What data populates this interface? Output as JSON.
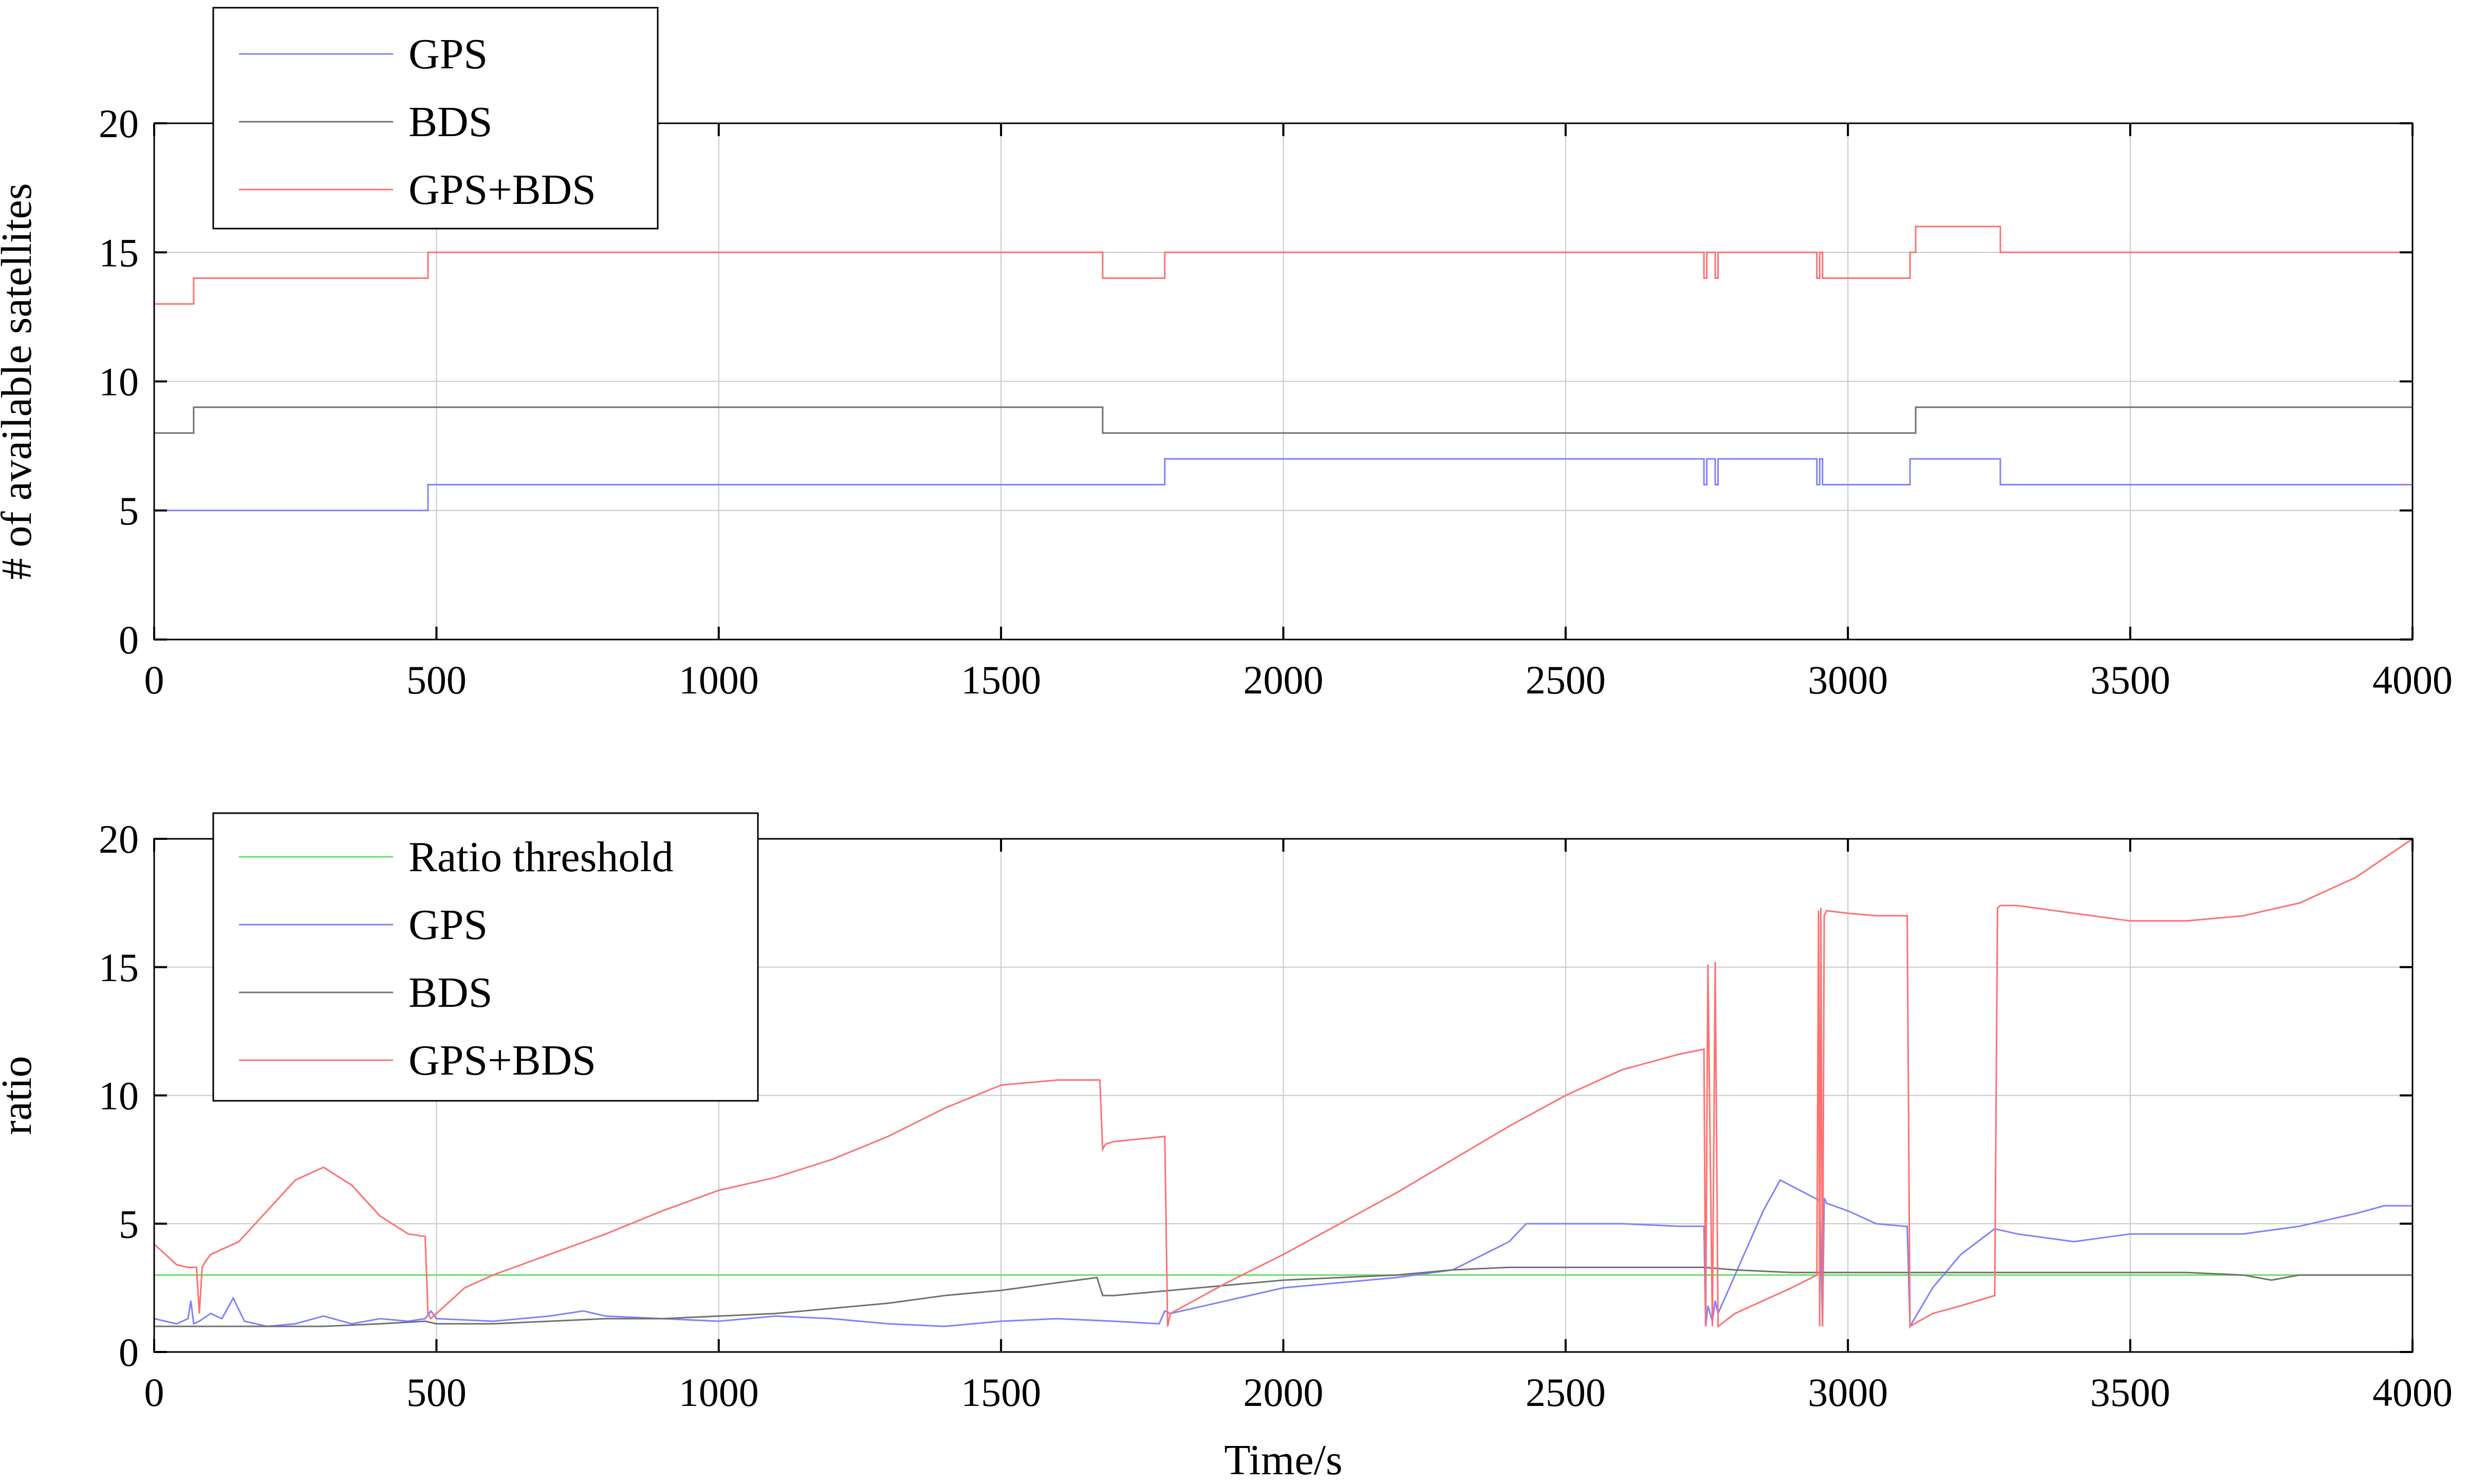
{
  "chart_data": [
    {
      "type": "line",
      "title": "",
      "xlabel": "",
      "ylabel": "# of available satellites",
      "xlim": [
        0,
        4000
      ],
      "ylim": [
        0,
        20
      ],
      "xticks": [
        0,
        500,
        1000,
        1500,
        2000,
        2500,
        3000,
        3500,
        4000
      ],
      "yticks": [
        0,
        5,
        10,
        15,
        20
      ],
      "grid": true,
      "legend_position": "top-left",
      "series": [
        {
          "name": "GPS",
          "color": "#8080ff",
          "step": true,
          "x": [
            0,
            485,
            1790,
            2745,
            2750,
            2765,
            2770,
            2945,
            2950,
            2955,
            2960,
            3110,
            3270,
            4000
          ],
          "y": [
            5,
            6,
            7,
            6,
            7,
            6,
            7,
            6,
            7,
            6,
            6,
            7,
            6,
            6
          ]
        },
        {
          "name": "BDS",
          "color": "#707070",
          "step": true,
          "x": [
            0,
            70,
            1680,
            3120,
            4000
          ],
          "y": [
            8,
            9,
            8,
            9,
            9
          ]
        },
        {
          "name": "GPS+BDS",
          "color": "#ff7070",
          "step": true,
          "x": [
            0,
            70,
            485,
            1680,
            1790,
            2745,
            2750,
            2765,
            2770,
            2945,
            2950,
            2955,
            2960,
            3110,
            3120,
            3270,
            4000
          ],
          "y": [
            13,
            14,
            15,
            14,
            15,
            14,
            15,
            14,
            15,
            14,
            15,
            14,
            14,
            15,
            16,
            15,
            15
          ]
        }
      ]
    },
    {
      "type": "line",
      "title": "",
      "xlabel": "Time/s",
      "ylabel": "ratio",
      "xlim": [
        0,
        4000
      ],
      "ylim": [
        0,
        20
      ],
      "xticks": [
        0,
        500,
        1000,
        1500,
        2000,
        2500,
        3000,
        3500,
        4000
      ],
      "yticks": [
        0,
        5,
        10,
        15,
        20
      ],
      "grid": true,
      "legend_position": "top-left",
      "series": [
        {
          "name": "Ratio threshold",
          "color": "#66dd66",
          "x": [
            0,
            4000
          ],
          "y": [
            3,
            3
          ]
        },
        {
          "name": "GPS",
          "color": "#8080ff",
          "x": [
            0,
            20,
            40,
            60,
            65,
            70,
            80,
            100,
            120,
            140,
            160,
            200,
            250,
            300,
            350,
            400,
            450,
            480,
            490,
            500,
            600,
            700,
            760,
            800,
            900,
            1000,
            1100,
            1200,
            1300,
            1400,
            1500,
            1600,
            1700,
            1780,
            1790,
            1800,
            1900,
            2000,
            2100,
            2200,
            2300,
            2400,
            2430,
            2500,
            2600,
            2700,
            2745,
            2748,
            2752,
            2760,
            2765,
            2770,
            2800,
            2850,
            2880,
            2950,
            2955,
            2958,
            2962,
            3000,
            3050,
            3100,
            3105,
            3110,
            3150,
            3200,
            3260,
            3300,
            3400,
            3500,
            3600,
            3700,
            3800,
            3900,
            3950,
            4000
          ],
          "y": [
            1.3,
            1.2,
            1.1,
            1.3,
            2.0,
            1.1,
            1.2,
            1.5,
            1.3,
            2.1,
            1.2,
            1.0,
            1.1,
            1.4,
            1.1,
            1.3,
            1.2,
            1.3,
            1.6,
            1.3,
            1.2,
            1.4,
            1.6,
            1.4,
            1.3,
            1.2,
            1.4,
            1.3,
            1.1,
            1.0,
            1.2,
            1.3,
            1.2,
            1.1,
            1.6,
            1.5,
            2.0,
            2.5,
            2.7,
            2.9,
            3.2,
            4.3,
            5.0,
            5.0,
            5.0,
            4.9,
            4.9,
            1.0,
            1.8,
            1.2,
            2.0,
            1.5,
            3.0,
            5.5,
            6.7,
            5.9,
            1.0,
            6.0,
            5.8,
            5.5,
            5.0,
            4.9,
            4.9,
            1.0,
            2.5,
            3.8,
            4.8,
            4.6,
            4.3,
            4.6,
            4.6,
            4.6,
            4.9,
            5.4,
            5.7,
            5.7
          ]
        },
        {
          "name": "BDS",
          "color": "#707070",
          "x": [
            0,
            100,
            200,
            300,
            400,
            480,
            500,
            600,
            700,
            800,
            900,
            1000,
            1100,
            1200,
            1300,
            1400,
            1500,
            1600,
            1670,
            1680,
            1700,
            1800,
            1900,
            2000,
            2100,
            2200,
            2300,
            2400,
            2500,
            2600,
            2700,
            2745,
            2800,
            2900,
            3000,
            3100,
            3200,
            3300,
            3400,
            3500,
            3600,
            3700,
            3750,
            3800,
            3900,
            4000
          ],
          "y": [
            1.0,
            1.0,
            1.0,
            1.0,
            1.1,
            1.2,
            1.1,
            1.1,
            1.2,
            1.3,
            1.3,
            1.4,
            1.5,
            1.7,
            1.9,
            2.2,
            2.4,
            2.7,
            2.9,
            2.2,
            2.2,
            2.4,
            2.6,
            2.8,
            2.9,
            3.0,
            3.2,
            3.3,
            3.3,
            3.3,
            3.3,
            3.3,
            3.2,
            3.1,
            3.1,
            3.1,
            3.1,
            3.1,
            3.1,
            3.1,
            3.1,
            3.0,
            2.8,
            3.0,
            3.0,
            3.0
          ]
        },
        {
          "name": "GPS+BDS",
          "color": "#ff7070",
          "x": [
            0,
            20,
            40,
            60,
            75,
            80,
            85,
            90,
            100,
            150,
            200,
            250,
            300,
            350,
            400,
            450,
            480,
            485,
            490,
            500,
            550,
            600,
            700,
            800,
            900,
            1000,
            1100,
            1200,
            1300,
            1400,
            1500,
            1600,
            1675,
            1680,
            1685,
            1700,
            1790,
            1795,
            1800,
            1900,
            2000,
            2100,
            2200,
            2300,
            2400,
            2500,
            2600,
            2700,
            2745,
            2748,
            2752,
            2760,
            2765,
            2770,
            2800,
            2900,
            2945,
            2948,
            2950,
            2952,
            2955,
            2958,
            2962,
            3000,
            3050,
            3105,
            3110,
            3150,
            3200,
            3260,
            3265,
            3270,
            3300,
            3400,
            3500,
            3600,
            3700,
            3800,
            3900,
            4000
          ],
          "y": [
            4.2,
            3.8,
            3.4,
            3.3,
            3.3,
            1.5,
            3.3,
            3.5,
            3.8,
            4.3,
            5.5,
            6.7,
            7.2,
            6.5,
            5.3,
            4.6,
            4.5,
            1.5,
            1.3,
            1.5,
            2.5,
            3.0,
            3.8,
            4.6,
            5.5,
            6.3,
            6.8,
            7.5,
            8.4,
            9.5,
            10.4,
            10.6,
            10.6,
            7.9,
            8.1,
            8.2,
            8.4,
            1.0,
            1.5,
            2.7,
            3.8,
            5.0,
            6.2,
            7.5,
            8.8,
            10.0,
            11.0,
            11.6,
            11.8,
            1.0,
            15.1,
            1.0,
            15.2,
            1.0,
            1.5,
            2.5,
            3.0,
            17.2,
            1.0,
            17.3,
            1.0,
            17.0,
            17.2,
            17.1,
            17.0,
            17.0,
            1.0,
            1.5,
            1.8,
            2.2,
            17.3,
            17.4,
            17.4,
            17.1,
            16.8,
            16.8,
            17.0,
            17.5,
            18.5,
            20.0
          ]
        }
      ]
    }
  ]
}
